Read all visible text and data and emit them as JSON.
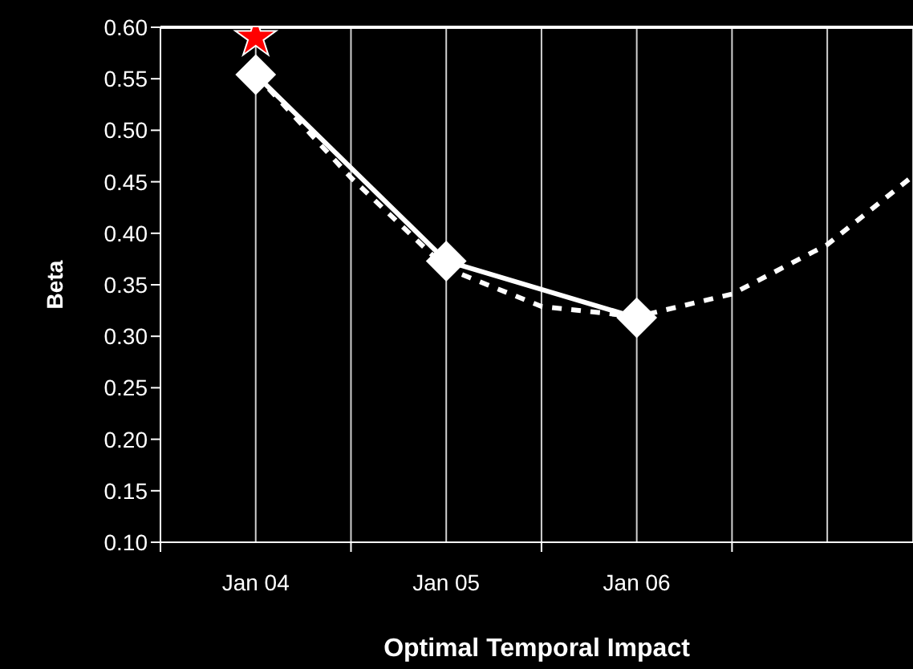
{
  "chart_data": {
    "type": "line",
    "xlabel": "Optimal Temporal Impact",
    "ylabel": "Beta",
    "categories": [
      "Jan 04",
      null,
      "Jan 05",
      null,
      "Jan 06",
      null,
      null,
      null
    ],
    "ylim": [
      0.1,
      0.6
    ],
    "yticks": [
      {
        "value": 0.1,
        "label": "0.10"
      },
      {
        "value": 0.15,
        "label": "0.15"
      },
      {
        "value": 0.2,
        "label": "0.20"
      },
      {
        "value": 0.25,
        "label": "0.25"
      },
      {
        "value": 0.3,
        "label": "0.30"
      },
      {
        "value": 0.35,
        "label": "0.35"
      },
      {
        "value": 0.4,
        "label": "0.40"
      },
      {
        "value": 0.45,
        "label": "0.45"
      },
      {
        "value": 0.5,
        "label": "0.50"
      },
      {
        "value": 0.55,
        "label": "0.55"
      },
      {
        "value": 0.6,
        "label": "0.60"
      }
    ],
    "grid": "x",
    "series": [
      {
        "color": "#ffffff",
        "values": [
          0.554,
          null,
          0.373,
          null,
          0.318,
          null,
          null,
          null
        ],
        "marker": "diamond",
        "line_style": "solid"
      },
      {
        "color": "#ffffff",
        "values": [
          0.554,
          0.454,
          0.366,
          0.329,
          0.319,
          0.341,
          0.389,
          0.463
        ],
        "marker": "none",
        "line_style": "dashed"
      },
      {
        "type": "scatter",
        "color": "#ff0000",
        "values": [
          0.59,
          null,
          null,
          null,
          null,
          null,
          null,
          null
        ],
        "marker": "star"
      }
    ]
  }
}
